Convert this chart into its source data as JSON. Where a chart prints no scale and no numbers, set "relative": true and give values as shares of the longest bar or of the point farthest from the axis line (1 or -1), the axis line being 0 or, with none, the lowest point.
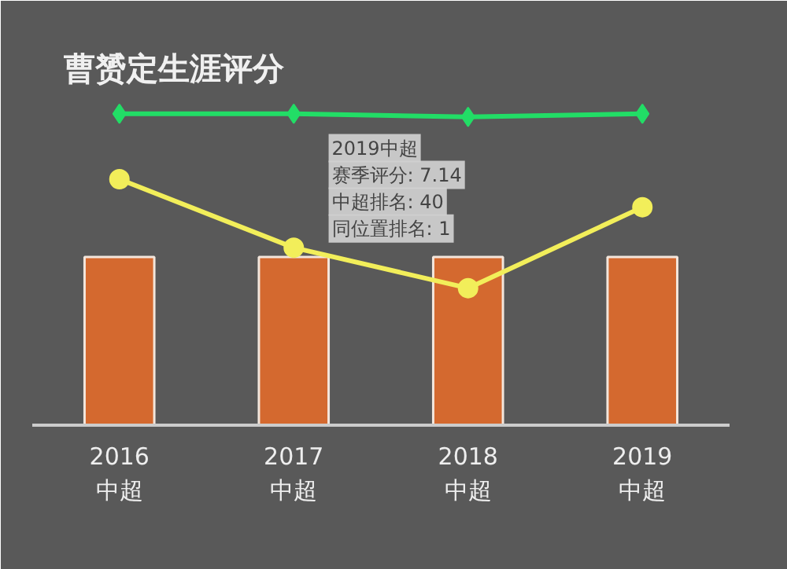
{
  "chart_data": {
    "type": "bar",
    "title": "曹赟定生涯评分",
    "relative": true,
    "categories": [
      "2016\n中超",
      "2017\n中超",
      "2018\n中超",
      "2019\n中超"
    ],
    "series": [
      {
        "color": "#d4692f",
        "values": [
          0.54,
          0.54,
          0.54,
          0.54
        ]
      },
      {
        "type": "line",
        "color": "#f2ee5a",
        "marker": "circle",
        "values": [
          0.79,
          0.57,
          0.44,
          0.7
        ]
      },
      {
        "type": "line",
        "color": "#22dd66",
        "marker": "diamond",
        "values": [
          1.0,
          1.0,
          0.99,
          1.0
        ]
      }
    ],
    "annotations": [
      "2019中超",
      "赛季评分: 7.14",
      "中超排名: 40",
      "同位置排名: 1"
    ],
    "grid": false
  }
}
